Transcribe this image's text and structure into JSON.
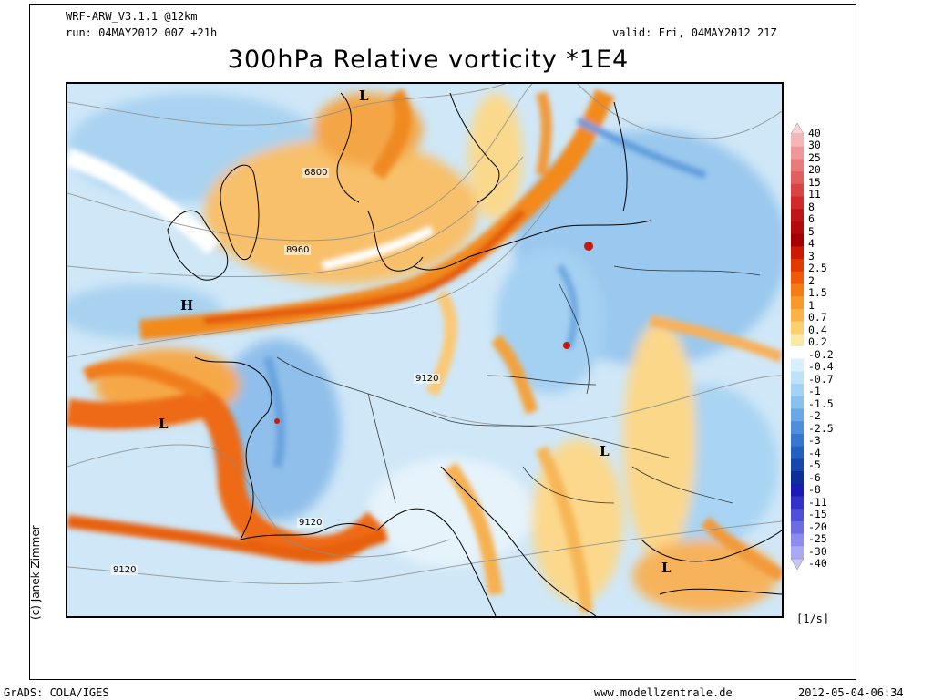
{
  "header": {
    "model": "WRF-ARW_V3.1.1 @12km",
    "run": "run: 04MAY2012 00Z +21h",
    "valid": "valid: Fri, 04MAY2012 21Z",
    "title": "300hPa Relative vorticity *1E4"
  },
  "colorbar": {
    "labels": [
      "40",
      "30",
      "25",
      "20",
      "15",
      "11",
      "8",
      "6",
      "5",
      "4",
      "3",
      "2.5",
      "2",
      "1.5",
      "1",
      "0.7",
      "0.4",
      "0.2",
      "-0.2",
      "-0.4",
      "-0.7",
      "-1",
      "-1.5",
      "-2",
      "-2.5",
      "-3",
      "-4",
      "-5",
      "-6",
      "-8",
      "-11",
      "-15",
      "-20",
      "-25",
      "-30",
      "-40"
    ],
    "colors": [
      "#fbd3d3",
      "#f4b6b6",
      "#ee9999",
      "#e77c7c",
      "#e06060",
      "#d94545",
      "#d02a2a",
      "#c01616",
      "#b40a0a",
      "#a40000",
      "#cc1a00",
      "#e03a00",
      "#f05a0a",
      "#f47c14",
      "#f79a2a",
      "#f8b44a",
      "#fad070",
      "#fce9a8",
      "#ffffff",
      "#d8efff",
      "#bfe2fb",
      "#a4d2f5",
      "#88c0ee",
      "#6aa7e4",
      "#4f8fda",
      "#3877cf",
      "#2460c0",
      "#1848ac",
      "#0c2f98",
      "#1a1ab4",
      "#3232c8",
      "#4f4fd8",
      "#6d6de2",
      "#8c8ceb",
      "#aaaaf2",
      "#c6c6f8"
    ],
    "units": "[1/s]"
  },
  "map": {
    "contour_labels": [
      "6800",
      "8960",
      "9120",
      "9120",
      "9120"
    ],
    "pressure_marks": [
      "L",
      "H",
      "L",
      "L",
      "L"
    ]
  },
  "footer": {
    "left": "GrADS: COLA/IGES",
    "center": "www.modellzentrale.de",
    "right": "2012-05-04-06:34",
    "credit": "(c) Janek Zimmer"
  }
}
